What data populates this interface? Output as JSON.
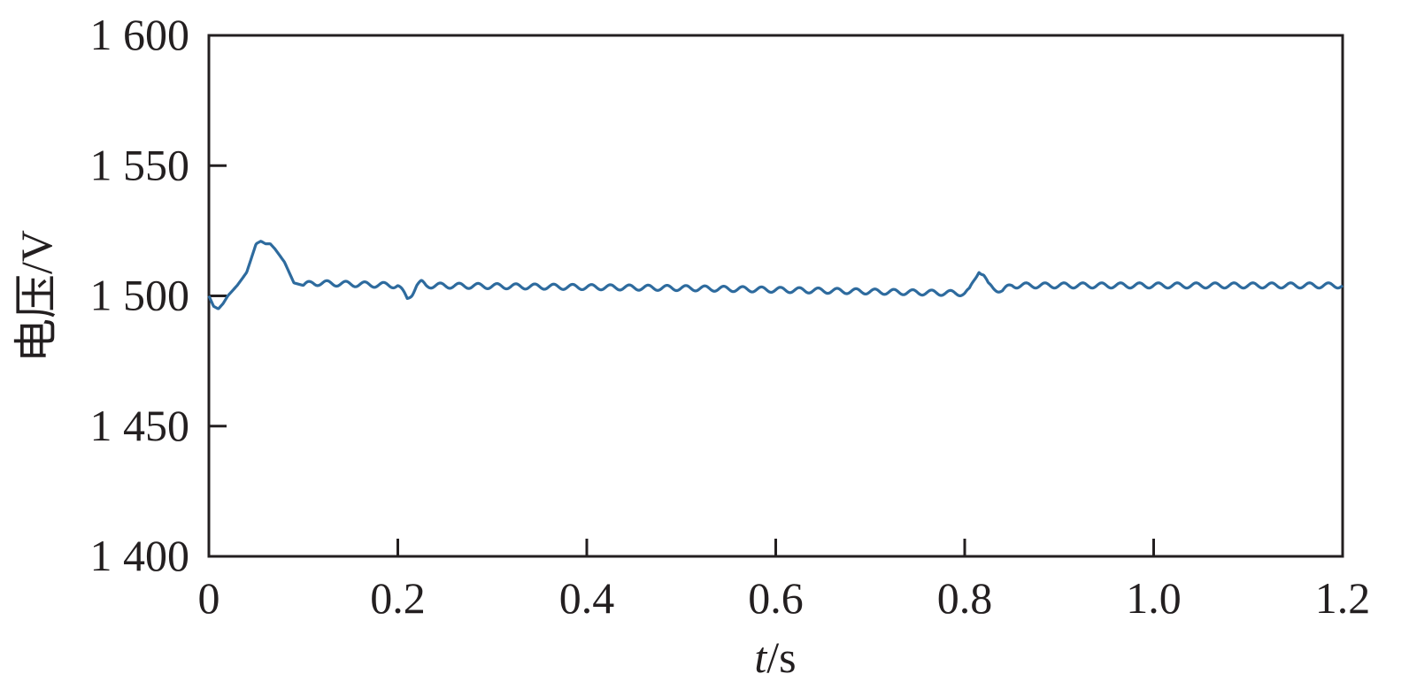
{
  "chart_data": {
    "type": "line",
    "title": "",
    "xlabel": {
      "italic": "t",
      "rest": "/s"
    },
    "ylabel": "电压/V",
    "xlim": [
      0,
      1.2
    ],
    "ylim": [
      1400,
      1600
    ],
    "x_ticks": [
      0,
      0.2,
      0.4,
      0.6,
      0.8,
      1.0,
      1.2
    ],
    "x_tick_labels": [
      "0",
      "0.2",
      "0.4",
      "0.6",
      "0.8",
      "1.0",
      "1.2"
    ],
    "y_ticks": [
      1400,
      1450,
      1500,
      1550,
      1600
    ],
    "y_tick_labels": [
      "1 400",
      "1 450",
      "1 500",
      "1 550",
      "1 600"
    ],
    "grid": false,
    "legend": "none",
    "line_color": "#2e6b9e",
    "series": [
      {
        "values_description": "voltage trace",
        "x": [
          0,
          0.005,
          0.01,
          0.015,
          0.02,
          0.03,
          0.04,
          0.05,
          0.055,
          0.06,
          0.065,
          0.07,
          0.08,
          0.09,
          0.1,
          0.11,
          0.2,
          0.21,
          0.215,
          0.22,
          0.225,
          0.23,
          0.5,
          0.8,
          0.805,
          0.81,
          0.815,
          0.82,
          0.825,
          0.83,
          0.84,
          0.85,
          1.2
        ],
        "y": [
          1500,
          1496,
          1495,
          1497,
          1500,
          1504,
          1509,
          1520,
          1521,
          1520,
          1520,
          1518,
          1513,
          1505,
          1504,
          1505,
          1504,
          1499,
          1501,
          1504,
          1505,
          1504,
          1503,
          1501,
          1502,
          1506,
          1510,
          1508,
          1504,
          1503,
          1502,
          1504,
          1504
        ]
      }
    ],
    "ripple": {
      "amplitude": 1.0,
      "period": 0.02
    }
  }
}
